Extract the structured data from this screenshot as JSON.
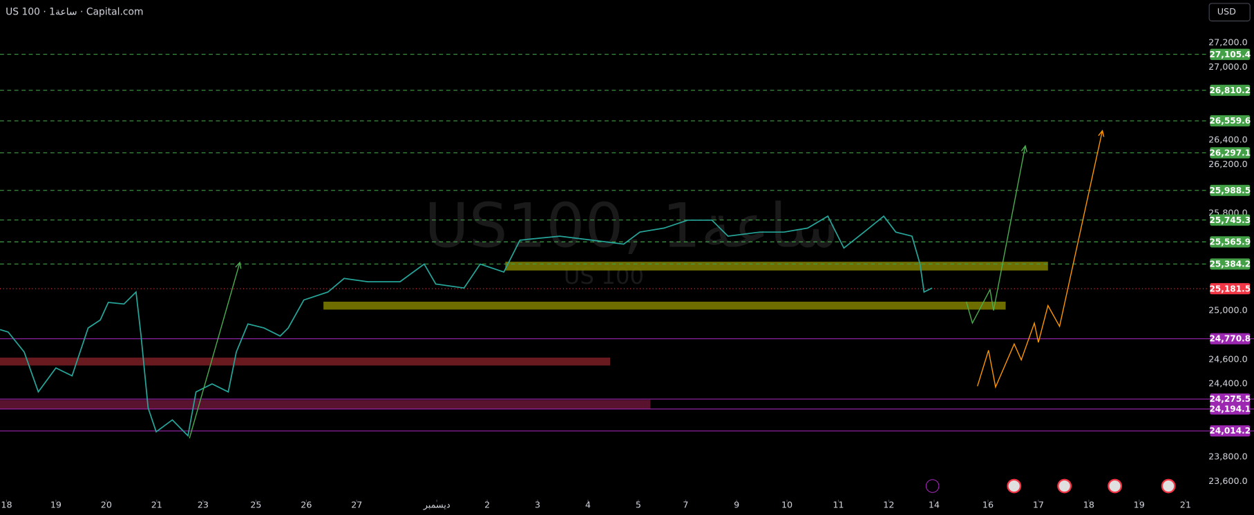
{
  "chart_data": {
    "type": "line",
    "title": "US 100 · 1ساعة · Capital.com",
    "currency": "USD",
    "watermark": "US100, 1ساعة",
    "watermark_sub": "US 100",
    "x": [
      -0.13,
      0.03,
      0.35,
      0.63,
      0.98,
      1.3,
      1.62,
      1.86,
      2.02,
      2.33,
      2.57,
      2.67,
      2.81,
      2.97,
      3.29,
      3.6,
      3.76,
      4.08,
      4.4,
      4.56,
      4.79,
      5.11,
      5.43,
      5.59,
      5.9,
      6.38,
      6.7,
      7.17,
      7.81,
      8.29,
      8.52,
      9.08,
      9.4,
      9.87,
      10.19,
      10.98,
      11.62,
      12.25,
      12.57,
      13.05,
      13.52,
      14.0,
      14.32,
      14.95,
      15.43,
      15.9,
      16.3,
      16.62,
      17.02,
      17.41,
      17.65,
      17.97,
      18.13,
      18.21,
      18.37
    ],
    "series": [
      {
        "color": "#26a69a",
        "values": [
          24846,
          24826,
          24662,
          24334,
          24531,
          24466,
          24859,
          24925,
          25069,
          25056,
          25154,
          24793,
          24203,
          24007,
          24105,
          23974,
          24334,
          24400,
          24334,
          24662,
          24892,
          24859,
          24793,
          24859,
          25089,
          25154,
          25266,
          25239,
          25239,
          25384,
          25220,
          25187,
          25384,
          25318,
          25580,
          25613,
          25580,
          25548,
          25646,
          25679,
          25744,
          25744,
          25613,
          25646,
          25646,
          25679,
          25777,
          25515,
          25646,
          25777,
          25646,
          25613,
          25384,
          25154,
          25187
        ]
      }
    ],
    "xlim": [
      -0.13,
      23.68
    ],
    "xticks": [
      {
        "value": 0,
        "label": "18"
      },
      {
        "value": 0.98,
        "label": "19"
      },
      {
        "value": 1.98,
        "label": "20"
      },
      {
        "value": 2.98,
        "label": "21"
      },
      {
        "value": 3.9,
        "label": "23"
      },
      {
        "value": 4.95,
        "label": "25"
      },
      {
        "value": 5.95,
        "label": "26"
      },
      {
        "value": 6.95,
        "label": "27"
      },
      {
        "value": 8.54,
        "label": "ديسمبر"
      },
      {
        "value": 9.54,
        "label": "2"
      },
      {
        "value": 10.54,
        "label": "3"
      },
      {
        "value": 11.54,
        "label": "4"
      },
      {
        "value": 12.54,
        "label": "5"
      },
      {
        "value": 13.48,
        "label": "7"
      },
      {
        "value": 14.49,
        "label": "9"
      },
      {
        "value": 15.49,
        "label": "10"
      },
      {
        "value": 16.51,
        "label": "11"
      },
      {
        "value": 17.51,
        "label": "12"
      },
      {
        "value": 18.41,
        "label": "14"
      },
      {
        "value": 19.48,
        "label": "16"
      },
      {
        "value": 20.48,
        "label": "17"
      },
      {
        "value": 21.48,
        "label": "18"
      },
      {
        "value": 22.48,
        "label": "19"
      },
      {
        "value": 23.4,
        "label": "21"
      }
    ],
    "ylim": [
      23450,
      27550
    ],
    "yticks": [
      {
        "value": 23600,
        "label": "23,600.0"
      },
      {
        "value": 23800,
        "label": "23,800.0"
      },
      {
        "value": 24400,
        "label": "24,400.0"
      },
      {
        "value": 24600,
        "label": "24,600.0"
      },
      {
        "value": 25000,
        "label": "25,000.0"
      },
      {
        "value": 25800,
        "label": "25,800.0"
      },
      {
        "value": 26200,
        "label": "26,200.0"
      },
      {
        "value": 26400,
        "label": "26,400.0"
      },
      {
        "value": 27000,
        "label": "27,000.0"
      },
      {
        "value": 27200,
        "label": "27,200.0"
      }
    ],
    "levels": [
      {
        "value": 27105.4,
        "label": "27,105.4",
        "color": "#43a047",
        "style": "dashed"
      },
      {
        "value": 26810.2,
        "label": "26,810.2",
        "color": "#43a047",
        "style": "dashed"
      },
      {
        "value": 26559.6,
        "label": "26,559.6",
        "color": "#43a047",
        "style": "dashed"
      },
      {
        "value": 26297.1,
        "label": "26,297.1",
        "color": "#43a047",
        "style": "dashed"
      },
      {
        "value": 25988.5,
        "label": "25,988.5",
        "color": "#43a047",
        "style": "dashed"
      },
      {
        "value": 25745.3,
        "label": "25,745.3",
        "color": "#43a047",
        "style": "dashed"
      },
      {
        "value": 25565.9,
        "label": "25,565.9",
        "color": "#43a047",
        "style": "dashed"
      },
      {
        "value": 25384.2,
        "label": "25,384.2",
        "color": "#43a047",
        "style": "dashed"
      },
      {
        "value": 25181.5,
        "label": "25,181.5",
        "color": "#f23645",
        "style": "dotted"
      },
      {
        "value": 24770.8,
        "label": "24,770.8",
        "color": "#9c27b0",
        "style": "solid"
      },
      {
        "value": 24275.5,
        "label": "24,275.5",
        "color": "#9c27b0",
        "style": "solid"
      },
      {
        "value": 24194.1,
        "label": "24,194.1",
        "color": "#9c27b0",
        "style": "solid"
      },
      {
        "value": 24014.2,
        "label": "24,014.2",
        "color": "#9c27b0",
        "style": "solid"
      }
    ],
    "zones": [
      {
        "x": [
          9.9,
          20.67
        ],
        "y": [
          25403,
          25331
        ],
        "color": "#808000"
      },
      {
        "x": [
          6.29,
          19.83
        ],
        "y": [
          25075,
          25010
        ],
        "color": "#808000"
      },
      {
        "x": [
          -0.13,
          11.98
        ],
        "y": [
          24616,
          24551
        ],
        "color": "#7a1f24"
      },
      {
        "x": [
          -0.13,
          12.78
        ],
        "y": [
          24269,
          24197
        ],
        "color": "#6a1636"
      }
    ],
    "drawings": [
      {
        "color": "#4caf50",
        "x": [
          3.63,
          4.63
        ],
        "y": [
          23954,
          25397
        ]
      },
      {
        "color": "#4caf50",
        "x": [
          19.05,
          19.17,
          19.52,
          19.59,
          20.22
        ],
        "y": [
          25075,
          24899,
          25174,
          25003,
          26354
        ]
      },
      {
        "color": "#ff9800",
        "x": [
          19.27,
          19.49,
          19.63,
          20.0,
          20.14,
          20.4,
          20.48,
          20.67,
          20.9,
          21.75
        ],
        "y": [
          24381,
          24676,
          24374,
          24728,
          24597,
          24899,
          24741,
          25043,
          24872,
          26479
        ]
      }
    ]
  }
}
